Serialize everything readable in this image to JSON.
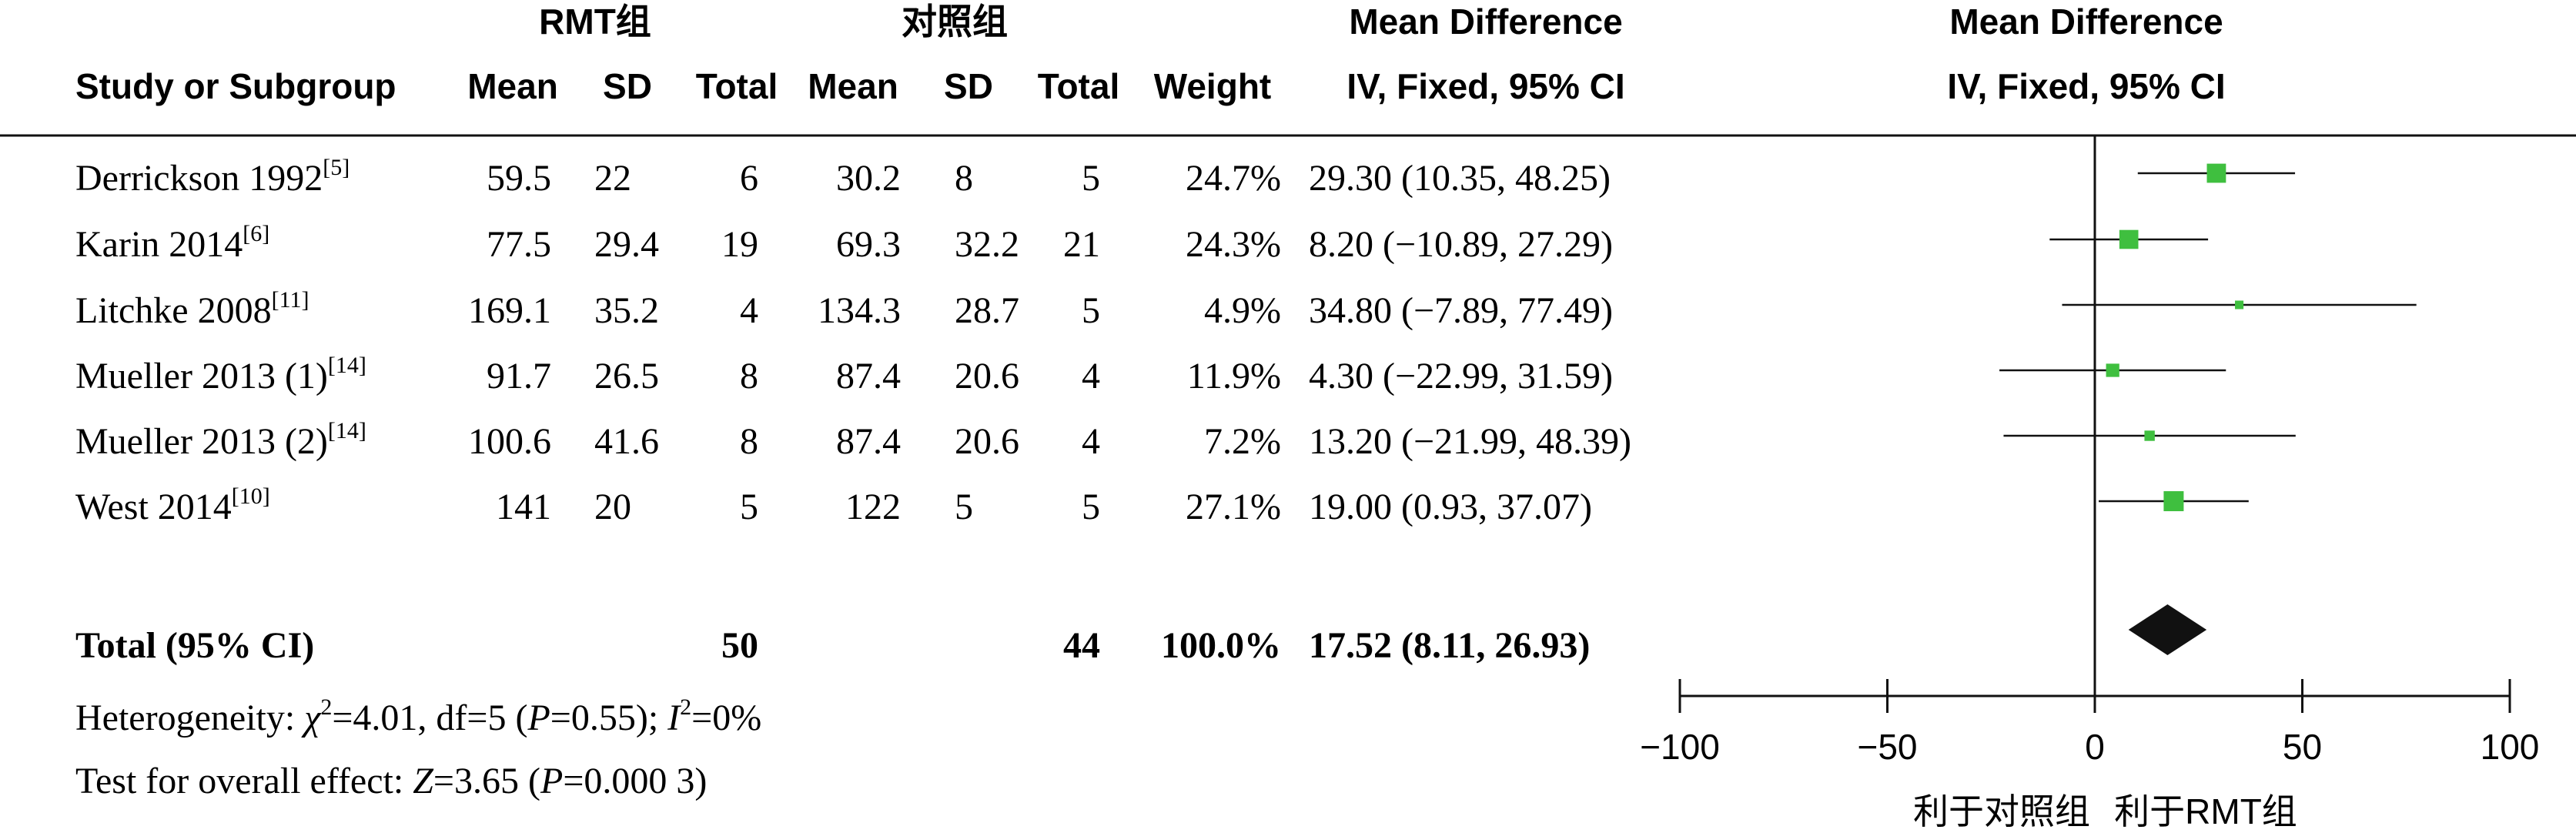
{
  "header": {
    "group1": "RMT组",
    "group2": "对照组",
    "effect_title": "Mean Difference",
    "effect_method": "IV, Fixed, 95% CI",
    "plot_title": "Mean Difference",
    "plot_method": "IV, Fixed, 95% CI",
    "columns": [
      "Study or Subgroup",
      "Mean",
      "SD",
      "Total",
      "Mean",
      "SD",
      "Total",
      "Weight"
    ]
  },
  "studies": [
    {
      "name": "Derrickson 1992",
      "ref": "[5]",
      "m1": "59.5",
      "sd1": "22",
      "n1": "6",
      "m2": "30.2",
      "sd2": "8",
      "n2": "5",
      "weight": "24.7%",
      "ci": "29.30 (10.35, 48.25)"
    },
    {
      "name": "Karin 2014",
      "ref": "[6]",
      "m1": "77.5",
      "sd1": "29.4",
      "n1": "19",
      "m2": "69.3",
      "sd2": "32.2",
      "n2": "21",
      "weight": "24.3%",
      "ci": "8.20 (−10.89, 27.29)"
    },
    {
      "name": "Litchke 2008",
      "ref": "[11]",
      "m1": "169.1",
      "sd1": "35.2",
      "n1": "4",
      "m2": "134.3",
      "sd2": "28.7",
      "n2": "5",
      "weight": "4.9%",
      "ci": "34.80 (−7.89, 77.49)"
    },
    {
      "name": "Mueller 2013 (1)",
      "ref": "[14]",
      "m1": "91.7",
      "sd1": "26.5",
      "n1": "8",
      "m2": "87.4",
      "sd2": "20.6",
      "n2": "4",
      "weight": "11.9%",
      "ci": "4.30 (−22.99, 31.59)"
    },
    {
      "name": "Mueller 2013 (2)",
      "ref": "[14]",
      "m1": "100.6",
      "sd1": "41.6",
      "n1": "8",
      "m2": "87.4",
      "sd2": "20.6",
      "n2": "4",
      "weight": "7.2%",
      "ci": "13.20 (−21.99, 48.39)"
    },
    {
      "name": "West 2014",
      "ref": "[10]",
      "m1": "141",
      "sd1": "20",
      "n1": "5",
      "m2": "122",
      "sd2": "5",
      "n2": "5",
      "weight": "27.1%",
      "ci": "19.00 (0.93, 37.07)"
    }
  ],
  "total": {
    "label": "Total (95% CI)",
    "n1": "50",
    "n2": "44",
    "weight": "100.0%",
    "ci": "17.52 (8.11, 26.93)"
  },
  "heterogeneity": {
    "prefix": "Heterogeneity: ",
    "chi_sym": "χ",
    "chi_sup": "2",
    "rest1": "=4.01, df=5 (",
    "p_sym": "P",
    "rest2": "=0.55); ",
    "i_sym": "I",
    "i_sup": "2",
    "rest3": "=0%"
  },
  "overall": {
    "prefix": "Test for overall effect: ",
    "z_sym": "Z",
    "rest1": "=3.65 (",
    "p_sym": "P",
    "rest2": "=0.000 3)"
  },
  "chart_data": {
    "type": "scatter",
    "subtype": "forest",
    "title": "Mean Difference",
    "subtitle": "IV, Fixed, 95% CI",
    "xlim": [
      -100,
      100
    ],
    "ticks": [
      -100,
      -50,
      0,
      50,
      100
    ],
    "tick_labels": [
      "−100",
      "−50",
      "0",
      "50",
      "100"
    ],
    "favours_left": "利于对照组",
    "favours_right": "利于RMT组",
    "studies": [
      {
        "name": "Derrickson 1992",
        "md": 29.3,
        "lo": 10.35,
        "hi": 48.25,
        "weight": 24.7
      },
      {
        "name": "Karin 2014",
        "md": 8.2,
        "lo": -10.89,
        "hi": 27.29,
        "weight": 24.3
      },
      {
        "name": "Litchke 2008",
        "md": 34.8,
        "lo": -7.89,
        "hi": 77.49,
        "weight": 4.9
      },
      {
        "name": "Mueller 2013 (1)",
        "md": 4.3,
        "lo": -22.99,
        "hi": 31.59,
        "weight": 11.9
      },
      {
        "name": "Mueller 2013 (2)",
        "md": 13.2,
        "lo": -21.99,
        "hi": 48.39,
        "weight": 7.2
      },
      {
        "name": "West 2014",
        "md": 19.0,
        "lo": 0.93,
        "hi": 37.07,
        "weight": 27.1
      }
    ],
    "total": {
      "md": 17.52,
      "lo": 8.11,
      "hi": 26.93
    },
    "colors": {
      "box": "#3fbf3f",
      "diamond": "#111111",
      "line": "#111111"
    }
  }
}
